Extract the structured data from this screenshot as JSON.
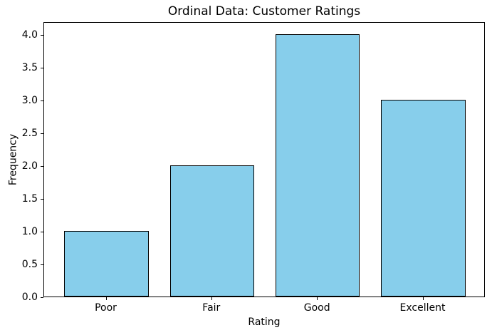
{
  "figure": {
    "background": "#ffffff"
  },
  "chart_data": {
    "type": "bar",
    "title": "Ordinal Data: Customer Ratings",
    "xlabel": "Rating",
    "ylabel": "Frequency",
    "categories": [
      "Poor",
      "Fair",
      "Good",
      "Excellent"
    ],
    "values": [
      1,
      2,
      4,
      3
    ],
    "bar_color": "#87CEEB",
    "bar_edge_color": "#000000",
    "bar_width": 0.8,
    "xlim": [
      -0.59,
      3.59
    ],
    "ylim": [
      0,
      4.2
    ],
    "ytick_values": [
      0,
      0.5,
      1,
      1.5,
      2,
      2.5,
      3,
      3.5,
      4
    ],
    "ytick_labels": [
      "0.0",
      "0.5",
      "1.0",
      "1.5",
      "2.0",
      "2.5",
      "3.0",
      "3.5",
      "4.0"
    ],
    "grid": false,
    "legend_position": "none"
  }
}
